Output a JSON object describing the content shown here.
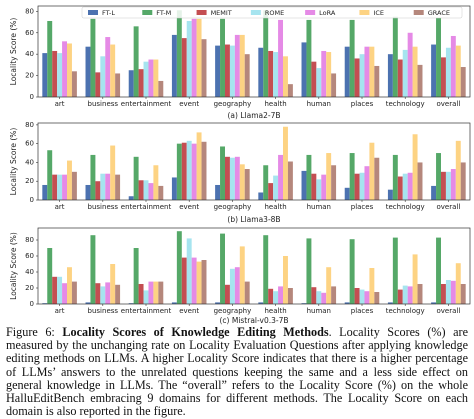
{
  "chart_data": [
    {
      "type": "bar",
      "caption": "(a) Llama2-7B",
      "ylabel": "Locality Score (%)",
      "legend": "top",
      "categories": [
        "art",
        "business",
        "entertainment",
        "event",
        "geography",
        "health",
        "human",
        "places",
        "technology",
        "overall"
      ],
      "ylim": [
        0,
        85
      ],
      "yticks": [
        0,
        20,
        40,
        60,
        80
      ],
      "series": [
        {
          "name": "FT-L",
          "color": "#4c72b0",
          "values": [
            41,
            47,
            25,
            58,
            48,
            46,
            51,
            47,
            40,
            49
          ]
        },
        {
          "name": "FT-M",
          "color": "#55a868",
          "values": [
            71,
            73,
            66,
            81,
            73,
            81,
            72,
            72,
            75,
            74
          ]
        },
        {
          "name": "MEMIT",
          "color": "#c44e52",
          "values": [
            43,
            23,
            26,
            55,
            49,
            43,
            33,
            36,
            35,
            37
          ]
        },
        {
          "name": "ROME",
          "color": "#a6e4ef",
          "values": [
            41,
            38,
            33,
            71,
            48,
            42,
            27,
            40,
            44,
            46
          ]
        },
        {
          "name": "LoRA",
          "color": "#e58ae6",
          "values": [
            52,
            56,
            35,
            73,
            58,
            72,
            43,
            47,
            60,
            57
          ]
        },
        {
          "name": "ICE",
          "color": "#fdd383",
          "values": [
            50,
            49,
            35,
            73,
            58,
            38,
            42,
            47,
            47,
            48
          ]
        },
        {
          "name": "GRACE",
          "color": "#b5877c",
          "values": [
            24,
            22,
            15,
            54,
            40,
            12,
            22,
            29,
            30,
            28
          ]
        }
      ]
    },
    {
      "type": "bar",
      "caption": "(b) Llama3-8B",
      "ylabel": "Locality Score (%)",
      "categories": [
        "art",
        "business",
        "entertainment",
        "event",
        "geography",
        "health",
        "human",
        "places",
        "technology",
        "overall"
      ],
      "ylim": [
        0,
        82
      ],
      "yticks": [
        0,
        20,
        40,
        60,
        80
      ],
      "series": [
        {
          "color": "#4c72b0",
          "values": [
            16,
            16,
            4,
            24,
            16,
            8,
            31,
            13,
            11,
            15
          ]
        },
        {
          "color": "#55a868",
          "values": [
            53,
            48,
            46,
            60,
            57,
            37,
            48,
            50,
            48,
            50
          ]
        },
        {
          "color": "#c44e52",
          "values": [
            27,
            20,
            21,
            61,
            46,
            18,
            28,
            28,
            25,
            30
          ]
        },
        {
          "color": "#a6e4ef",
          "values": [
            27,
            28,
            21,
            63,
            45,
            26,
            22,
            29,
            28,
            30
          ]
        },
        {
          "color": "#e58ae6",
          "values": [
            27,
            28,
            18,
            60,
            46,
            48,
            27,
            36,
            29,
            33
          ]
        },
        {
          "color": "#fdd383",
          "values": [
            42,
            58,
            37,
            72,
            38,
            78,
            50,
            61,
            70,
            63
          ]
        },
        {
          "color": "#b5877c",
          "values": [
            30,
            27,
            15,
            62,
            33,
            41,
            37,
            45,
            40,
            40
          ]
        }
      ]
    },
    {
      "type": "bar",
      "caption": "(c) Mistral-v0.3-7B",
      "ylabel": "Locality Score (%)",
      "categories": [
        "art",
        "business",
        "entertainment",
        "event",
        "geography",
        "health",
        "human",
        "places",
        "technology",
        "overall"
      ],
      "ylim": [
        0,
        95
      ],
      "yticks": [
        0,
        20,
        40,
        60,
        80
      ],
      "series": [
        {
          "color": "#4c72b0",
          "values": [
            1,
            2,
            1,
            2,
            2,
            2,
            1,
            2,
            2,
            2
          ]
        },
        {
          "color": "#55a868",
          "values": [
            70,
            86,
            70,
            91,
            88,
            86,
            82,
            81,
            83,
            83
          ]
        },
        {
          "color": "#c44e52",
          "values": [
            34,
            26,
            25,
            58,
            24,
            19,
            21,
            20,
            18,
            25
          ]
        },
        {
          "color": "#a6e4ef",
          "values": [
            34,
            22,
            17,
            82,
            44,
            16,
            16,
            18,
            23,
            30
          ]
        },
        {
          "color": "#e58ae6",
          "values": [
            26,
            27,
            28,
            58,
            46,
            22,
            14,
            16,
            22,
            29
          ]
        },
        {
          "color": "#fdd383",
          "values": [
            46,
            50,
            28,
            53,
            72,
            60,
            46,
            45,
            62,
            51
          ]
        },
        {
          "color": "#b5877c",
          "values": [
            28,
            24,
            28,
            55,
            28,
            20,
            22,
            15,
            25,
            25
          ]
        }
      ]
    }
  ],
  "figure_caption": {
    "label": "Figure 6:",
    "bold": "Locality Scores of Knowledge Editing Methods",
    "text": ". Locality Scores (%) are measured by the unchanging rate on Locality Evaluation Questions after applying knowledge editing methods on LLMs. A higher Locality Score indicates that there is a higher percentage of LLMs’ answers to the unrelated questions keeping the same and a less side effect on general knowledge in LLMs. The “overall” refers to the Locality Score (%) on the whole HalluEditBench embracing 9 domains for different methods. The Locality Score on each domain is also reported in the figure."
  }
}
